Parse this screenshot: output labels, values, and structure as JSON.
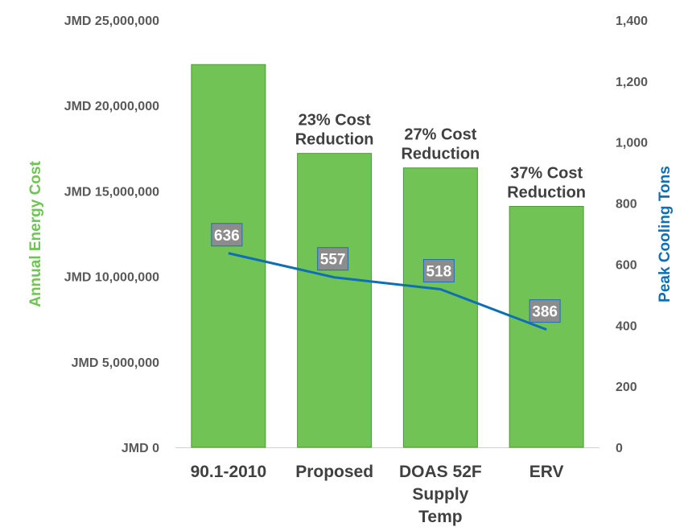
{
  "chart_data": {
    "type": "bar",
    "categories": [
      [
        "90.1-2010"
      ],
      [
        "Proposed"
      ],
      [
        "DOAS 52F",
        "Supply",
        "Temp"
      ],
      [
        "ERV"
      ]
    ],
    "series": [
      {
        "name": "Annual Energy Cost",
        "type": "bar",
        "axis": "left",
        "values": [
          22400000,
          17200000,
          16350000,
          14100000
        ]
      },
      {
        "name": "Peak Cooling Tons",
        "type": "line",
        "axis": "right",
        "values": [
          636,
          557,
          518,
          386
        ],
        "data_labels": [
          "636",
          "557",
          "518",
          "386"
        ]
      }
    ],
    "annotations": [
      null,
      [
        "23% Cost",
        "Reduction"
      ],
      [
        "27% Cost",
        "Reduction"
      ],
      [
        "37% Cost",
        "Reduction"
      ]
    ],
    "ylabel_left": "Annual Energy Cost",
    "ylabel_right": "Peak Cooling Tons",
    "ylim_left": [
      0,
      25000000
    ],
    "ylim_right": [
      0,
      1400
    ],
    "yticks_left": [
      "JMD 0",
      "JMD 5,000,000",
      "JMD 10,000,000",
      "JMD 15,000,000",
      "JMD 20,000,000",
      "JMD 25,000,000"
    ],
    "yticks_left_values": [
      0,
      5000000,
      10000000,
      15000000,
      20000000,
      25000000
    ],
    "yticks_right": [
      "0",
      "200",
      "400",
      "600",
      "800",
      "1,000",
      "1,200",
      "1,400"
    ],
    "yticks_right_values": [
      0,
      200,
      400,
      600,
      800,
      1000,
      1200,
      1400
    ],
    "grid": false,
    "legend": "none",
    "colors": {
      "bar_fill": "#70c354",
      "bar_stroke": "#4e9a35",
      "line": "#0e6fb5",
      "label_box_fill": "#8c8c8c",
      "label_box_stroke": "#1f6fb2",
      "left_axis_label": "#70c354",
      "right_axis_label": "#0e6fb5",
      "axis_line": "#d0d0d0"
    }
  }
}
